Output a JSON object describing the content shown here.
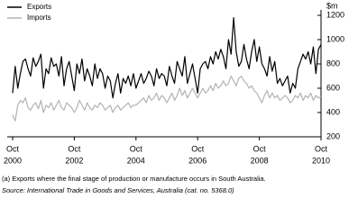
{
  "chart_data": {
    "type": "line",
    "y_unit": "$m",
    "x": [
      "2000-10",
      "2000-11",
      "2000-12",
      "2001-01",
      "2001-02",
      "2001-03",
      "2001-04",
      "2001-05",
      "2001-06",
      "2001-07",
      "2001-08",
      "2001-09",
      "2001-10",
      "2001-11",
      "2001-12",
      "2002-01",
      "2002-02",
      "2002-03",
      "2002-04",
      "2002-05",
      "2002-06",
      "2002-07",
      "2002-08",
      "2002-09",
      "2002-10",
      "2002-11",
      "2002-12",
      "2003-01",
      "2003-02",
      "2003-03",
      "2003-04",
      "2003-05",
      "2003-06",
      "2003-07",
      "2003-08",
      "2003-09",
      "2003-10",
      "2003-11",
      "2003-12",
      "2004-01",
      "2004-02",
      "2004-03",
      "2004-04",
      "2004-05",
      "2004-06",
      "2004-07",
      "2004-08",
      "2004-09",
      "2004-10",
      "2004-11",
      "2004-12",
      "2005-01",
      "2005-02",
      "2005-03",
      "2005-04",
      "2005-05",
      "2005-06",
      "2005-07",
      "2005-08",
      "2005-09",
      "2005-10",
      "2005-11",
      "2005-12",
      "2006-01",
      "2006-02",
      "2006-03",
      "2006-04",
      "2006-05",
      "2006-06",
      "2006-07",
      "2006-08",
      "2006-09",
      "2006-10",
      "2006-11",
      "2006-12",
      "2007-01",
      "2007-02",
      "2007-03",
      "2007-04",
      "2007-05",
      "2007-06",
      "2007-07",
      "2007-08",
      "2007-09",
      "2007-10",
      "2007-11",
      "2007-12",
      "2008-01",
      "2008-02",
      "2008-03",
      "2008-04",
      "2008-05",
      "2008-06",
      "2008-07",
      "2008-08",
      "2008-09",
      "2008-10",
      "2008-11",
      "2008-12",
      "2009-01",
      "2009-02",
      "2009-03",
      "2009-04",
      "2009-05",
      "2009-06",
      "2009-07",
      "2009-08",
      "2009-09",
      "2009-10",
      "2009-11",
      "2009-12",
      "2010-01",
      "2010-02",
      "2010-03",
      "2010-04",
      "2010-05",
      "2010-06",
      "2010-07",
      "2010-08",
      "2010-09",
      "2010-10"
    ],
    "series": [
      {
        "name": "Exports",
        "color": "#000000",
        "values": [
          560,
          780,
          600,
          720,
          820,
          840,
          760,
          700,
          850,
          780,
          820,
          880,
          600,
          760,
          720,
          850,
          780,
          800,
          700,
          860,
          620,
          760,
          820,
          700,
          580,
          800,
          720,
          840,
          660,
          760,
          700,
          620,
          800,
          680,
          760,
          720,
          600,
          700,
          660,
          520,
          640,
          720,
          560,
          680,
          640,
          700,
          620,
          720,
          600,
          660,
          720,
          640,
          680,
          740,
          700,
          620,
          760,
          680,
          720,
          700,
          620,
          780,
          700,
          640,
          820,
          760,
          700,
          860,
          640,
          720,
          800,
          680,
          560,
          760,
          800,
          820,
          760,
          860,
          800,
          900,
          840,
          920,
          860,
          760,
          1000,
          880,
          1180,
          900,
          780,
          820,
          960,
          840,
          760,
          900,
          1000,
          820,
          940,
          800,
          760,
          700,
          860,
          740,
          820,
          640,
          680,
          620,
          660,
          700,
          560,
          640,
          600,
          760,
          820,
          880,
          840,
          900,
          800,
          940,
          720,
          920,
          960
        ]
      },
      {
        "name": "Imports",
        "color": "#b3b3b3",
        "values": [
          380,
          330,
          460,
          500,
          480,
          520,
          440,
          420,
          460,
          480,
          430,
          500,
          400,
          460,
          440,
          480,
          420,
          460,
          500,
          440,
          420,
          480,
          460,
          440,
          400,
          440,
          500,
          460,
          420,
          480,
          440,
          420,
          460,
          440,
          480,
          460,
          420,
          440,
          460,
          400,
          440,
          460,
          420,
          440,
          460,
          480,
          440,
          460,
          460,
          480,
          500,
          520,
          480,
          540,
          500,
          520,
          560,
          500,
          540,
          520,
          480,
          520,
          560,
          500,
          540,
          600,
          540,
          580,
          520,
          560,
          600,
          560,
          520,
          560,
          600,
          560,
          580,
          620,
          580,
          640,
          600,
          620,
          660,
          620,
          640,
          700,
          660,
          620,
          680,
          700,
          660,
          640,
          600,
          620,
          580,
          560,
          520,
          480,
          540,
          580,
          520,
          560,
          520,
          540,
          500,
          520,
          540,
          520,
          480,
          500,
          540,
          520,
          560,
          500,
          540,
          520,
          560,
          500,
          540,
          520,
          530
        ]
      }
    ],
    "xlim": [
      "2000-10",
      "2010-10"
    ],
    "xticks": [
      {
        "value": "2000-10",
        "label": [
          "Oct",
          "2000"
        ]
      },
      {
        "value": "2002-10",
        "label": [
          "Oct",
          "2002"
        ]
      },
      {
        "value": "2004-10",
        "label": [
          "Oct",
          "2004"
        ]
      },
      {
        "value": "2006-10",
        "label": [
          "Oct",
          "2006"
        ]
      },
      {
        "value": "2008-10",
        "label": [
          "Oct",
          "2008"
        ]
      },
      {
        "value": "2010-10",
        "label": [
          "Oct",
          "2010"
        ]
      }
    ],
    "ylim": [
      200,
      1200
    ],
    "yticks": [
      200,
      400,
      600,
      800,
      1000,
      1200
    ],
    "legend": "top-left",
    "footnote": "(a) Exports where the final stage of production or manufacture occurs in South Australia.",
    "source": "Source: International Trade in Goods and Services, Australia (cat. no. 5368.0)"
  }
}
